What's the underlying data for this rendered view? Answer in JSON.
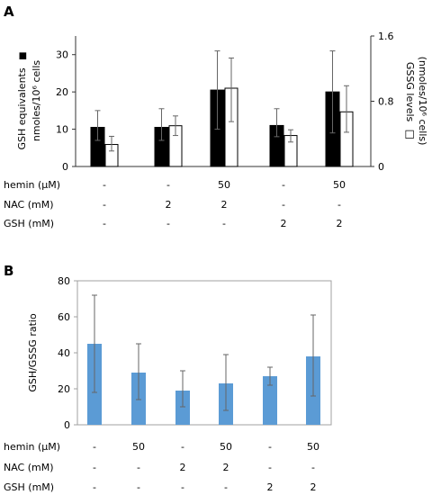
{
  "chart_data": [
    {
      "panel": "A",
      "type": "bar",
      "categories": [
        "1",
        "2",
        "3",
        "4",
        "5"
      ],
      "series": [
        {
          "color": "#000000",
          "fill": "solid",
          "axis": "left",
          "values": [
            10.5,
            10.5,
            20.5,
            11,
            20
          ],
          "err_low": [
            7,
            7,
            10,
            8,
            9
          ],
          "err_high": [
            15,
            15.5,
            31,
            15.5,
            31
          ]
        },
        {
          "color": "#000000",
          "fill": "open",
          "axis": "right",
          "values": [
            0.27,
            0.5,
            0.96,
            0.38,
            0.67
          ],
          "err_low": [
            0.19,
            0.38,
            0.55,
            0.3,
            0.42
          ],
          "err_high": [
            0.37,
            0.62,
            1.33,
            0.45,
            0.99
          ]
        }
      ],
      "ylabel_left": "GSH equivalents",
      "ylabel_left2": "nmoles/10⁶ cells",
      "ylabel_left_marker": "■",
      "ylabel_right": "GSSG levels",
      "ylabel_right2": "(nmoles/10⁶ cells)",
      "ylabel_right_marker": "□",
      "ylim_left": [
        0,
        35
      ],
      "yticks_left": [
        "0",
        "10",
        "20",
        "30"
      ],
      "ylim_right": [
        0,
        1.6
      ],
      "yticks_right": [
        "0",
        "0.8",
        "1.6"
      ],
      "conditions": [
        {
          "label": "hemin (μM)",
          "values": [
            "-",
            "-",
            "50",
            "-",
            "50"
          ]
        },
        {
          "label": "NAC (mM)",
          "values": [
            "-",
            "2",
            "2",
            "-",
            "-"
          ]
        },
        {
          "label": "GSH (mM)",
          "values": [
            "-",
            "-",
            "-",
            "2",
            "2"
          ]
        }
      ]
    },
    {
      "panel": "B",
      "type": "bar",
      "categories": [
        "1",
        "2",
        "3",
        "4",
        "5",
        "6"
      ],
      "series": [
        {
          "color": "#5b9bd5",
          "values": [
            45,
            29,
            19,
            23,
            27,
            38
          ],
          "err_low": [
            18,
            14,
            10,
            8,
            22,
            16
          ],
          "err_high": [
            72,
            45,
            30,
            39,
            32,
            61
          ]
        }
      ],
      "ylabel": "GSH/GSSG ratio",
      "ylim": [
        0,
        80
      ],
      "yticks": [
        "0",
        "20",
        "40",
        "60",
        "80"
      ],
      "conditions": [
        {
          "label": "hemin (μM)",
          "values": [
            "-",
            "50",
            "-",
            "50",
            "-",
            "50"
          ]
        },
        {
          "label": "NAC (mM)",
          "values": [
            "-",
            "-",
            "2",
            "2",
            "-",
            "-"
          ]
        },
        {
          "label": "GSH (mM)",
          "values": [
            "-",
            "-",
            "-",
            "-",
            "2",
            "2"
          ]
        }
      ]
    }
  ]
}
